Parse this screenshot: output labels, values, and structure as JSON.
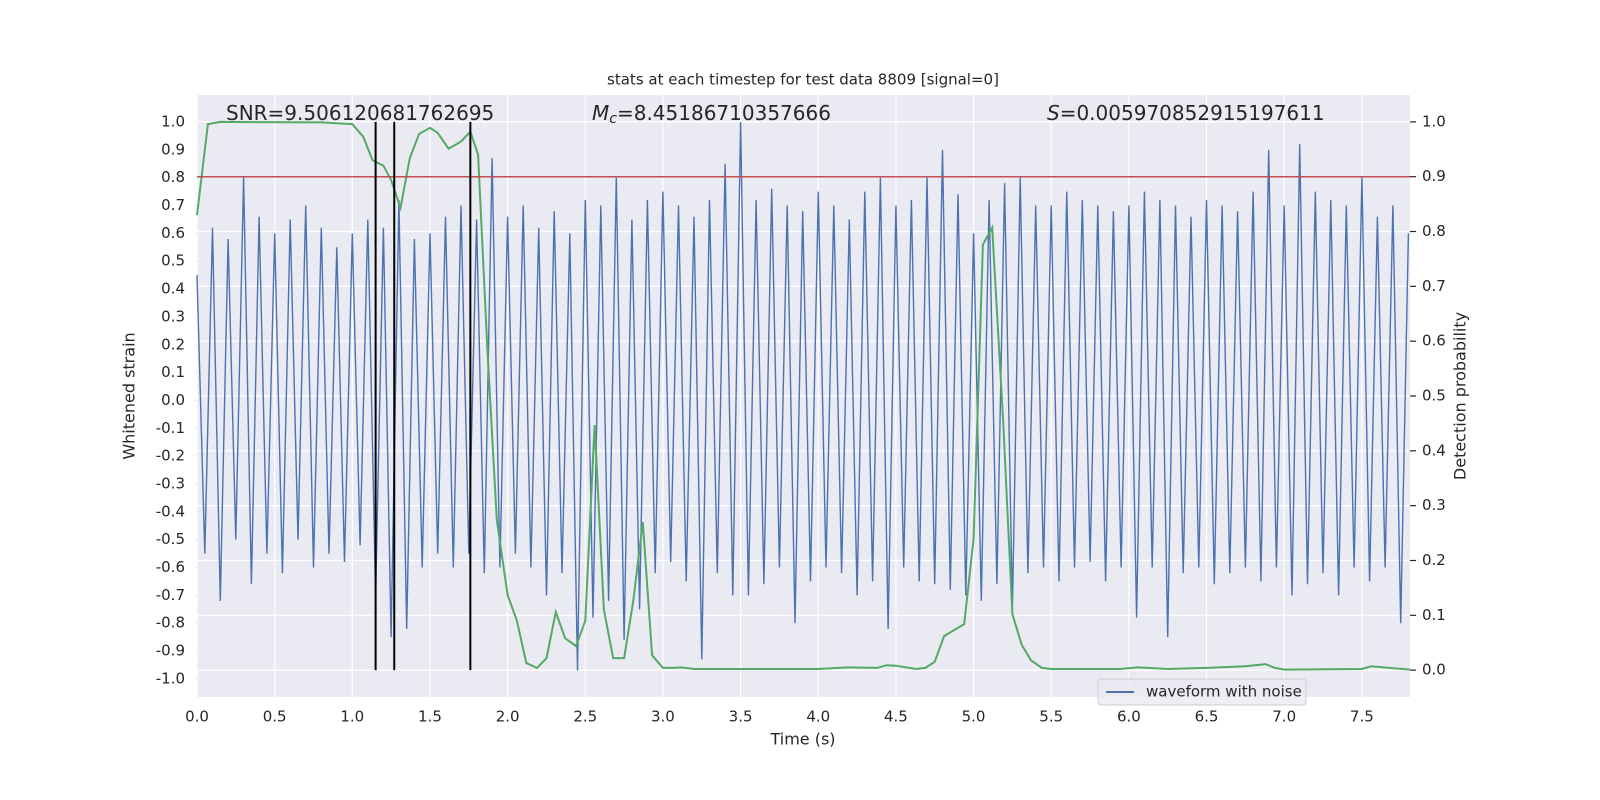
{
  "chart_data": {
    "type": "line",
    "title": "stats at each timestep for test data 8809 [signal=0]",
    "xlabel": "Time (s)",
    "ylabel": "Whitened strain",
    "y2label": "Detection probability",
    "xlim": [
      0,
      7.81
    ],
    "ylim": [
      -1.065,
      1.097
    ],
    "y2lim": [
      -0.049,
      1.049
    ],
    "xticks": [
      {
        "value": 0,
        "label": "0.0"
      },
      0.5,
      {
        "value": 1,
        "label": "1.0"
      },
      1.5,
      {
        "value": 2,
        "label": "2.0"
      },
      2.5,
      {
        "value": 3,
        "label": "3.0"
      },
      3.5,
      {
        "value": 4,
        "label": "4.0"
      },
      4.5,
      {
        "value": 5,
        "label": "5.0"
      },
      5.5,
      {
        "value": 6,
        "label": "6.0"
      },
      6.5,
      {
        "value": 7,
        "label": "7.0"
      },
      7.5
    ],
    "yticks": [
      {
        "value": -1,
        "label": "-1.0"
      },
      -0.9,
      -0.8,
      -0.7,
      -0.6,
      -0.5,
      -0.4,
      -0.3,
      -0.2,
      -0.1,
      {
        "value": 0,
        "label": "0.0"
      },
      0.1,
      0.2,
      0.3,
      0.4,
      0.5,
      0.6,
      0.7,
      0.8,
      0.9,
      {
        "value": 1,
        "label": "1.0"
      }
    ],
    "y2ticks": [
      {
        "value": 0,
        "label": "0.0"
      },
      0.1,
      0.2,
      0.3,
      0.4,
      0.5,
      0.6,
      0.7,
      0.8,
      0.9,
      {
        "value": 1,
        "label": "1.0"
      }
    ],
    "grid": true,
    "legend": "lower right",
    "series": [
      {
        "name": "waveform with noise",
        "color": "#4c72b0",
        "axis": "y",
        "x": [
          0,
          0.05,
          0.1,
          0.15,
          0.2,
          0.25,
          0.3,
          0.35,
          0.4,
          0.45,
          0.5,
          0.55,
          0.6,
          0.65,
          0.7,
          0.75,
          0.8,
          0.85,
          0.9,
          0.95,
          1,
          1.05,
          1.1,
          1.15,
          1.2,
          1.25,
          1.3,
          1.35,
          1.4,
          1.45,
          1.5,
          1.55,
          1.6,
          1.65,
          1.7,
          1.75,
          1.8,
          1.85,
          1.9,
          1.95,
          2,
          2.05,
          2.1,
          2.15,
          2.2,
          2.25,
          2.3,
          2.35,
          2.4,
          2.45,
          2.5,
          2.55,
          2.6,
          2.65,
          2.7,
          2.75,
          2.8,
          2.85,
          2.9,
          2.95,
          3,
          3.05,
          3.1,
          3.15,
          3.2,
          3.25,
          3.3,
          3.35,
          3.4,
          3.45,
          3.5,
          3.55,
          3.6,
          3.65,
          3.7,
          3.75,
          3.8,
          3.85,
          3.9,
          3.95,
          4,
          4.05,
          4.1,
          4.15,
          4.2,
          4.25,
          4.3,
          4.35,
          4.4,
          4.45,
          4.5,
          4.55,
          4.6,
          4.65,
          4.7,
          4.75,
          4.8,
          4.85,
          4.9,
          4.95,
          5,
          5.05,
          5.1,
          5.15,
          5.2,
          5.25,
          5.3,
          5.35,
          5.4,
          5.45,
          5.5,
          5.55,
          5.6,
          5.65,
          5.7,
          5.75,
          5.8,
          5.85,
          5.9,
          5.95,
          6,
          6.05,
          6.1,
          6.15,
          6.2,
          6.25,
          6.3,
          6.35,
          6.4,
          6.45,
          6.5,
          6.55,
          6.6,
          6.65,
          6.7,
          6.75,
          6.8,
          6.85,
          6.9,
          6.95,
          7,
          7.05,
          7.1,
          7.15,
          7.2,
          7.25,
          7.3,
          7.35,
          7.4,
          7.45,
          7.5,
          7.55,
          7.6,
          7.65,
          7.7,
          7.75,
          7.8
        ],
        "values": [
          0.45,
          -0.55,
          0.62,
          -0.72,
          0.58,
          -0.5,
          0.8,
          -0.66,
          0.66,
          -0.55,
          0.6,
          -0.62,
          0.65,
          -0.5,
          0.7,
          -0.6,
          0.62,
          -0.55,
          0.55,
          -0.58,
          0.6,
          -0.52,
          0.65,
          -0.7,
          0.62,
          -0.85,
          0.72,
          -0.82,
          0.58,
          -0.6,
          0.6,
          -0.55,
          0.66,
          -0.6,
          0.7,
          -0.55,
          0.65,
          -0.62,
          0.87,
          -0.6,
          0.66,
          -0.55,
          0.7,
          -0.6,
          0.62,
          -0.7,
          0.68,
          -0.62,
          0.6,
          -0.97,
          0.72,
          -0.78,
          0.7,
          -0.72,
          0.8,
          -0.86,
          0.65,
          -0.75,
          0.72,
          -0.62,
          0.75,
          -0.58,
          0.7,
          -0.65,
          0.66,
          -0.93,
          0.72,
          -0.62,
          0.85,
          -0.7,
          1.0,
          -0.7,
          0.72,
          -0.66,
          0.76,
          -0.6,
          0.7,
          -0.8,
          0.68,
          -0.65,
          0.75,
          -0.6,
          0.7,
          -0.62,
          0.65,
          -0.7,
          0.75,
          -0.65,
          0.8,
          -0.82,
          0.7,
          -0.6,
          0.72,
          -0.65,
          0.8,
          -0.66,
          0.9,
          -0.68,
          0.74,
          -0.7,
          0.6,
          -0.72,
          0.72,
          -0.66,
          0.78,
          -0.75,
          0.8,
          -0.62,
          0.7,
          -0.6,
          0.7,
          -0.65,
          0.75,
          -0.6,
          0.72,
          -0.58,
          0.7,
          -0.65,
          0.68,
          -0.6,
          0.7,
          -0.78,
          0.75,
          -0.6,
          0.72,
          -0.85,
          0.7,
          -0.62,
          0.66,
          -0.6,
          0.72,
          -0.66,
          0.7,
          -0.62,
          0.68,
          -0.6,
          0.75,
          -0.65,
          0.9,
          -0.6,
          0.7,
          -0.7,
          0.92,
          -0.66,
          0.75,
          -0.62,
          0.72,
          -0.7,
          0.7,
          -0.6,
          0.8,
          -0.65,
          0.66,
          -0.6,
          0.7,
          -0.8,
          0.6
        ]
      },
      {
        "color": "#55a868",
        "axis": "y2",
        "x": [
          0,
          0.07,
          0.15,
          0.8,
          1.0,
          1.07,
          1.13,
          1.2,
          1.25,
          1.31,
          1.37,
          1.43,
          1.5,
          1.55,
          1.62,
          1.7,
          1.76,
          1.81,
          1.87,
          1.93,
          2.0,
          2.06,
          2.12,
          2.19,
          2.25,
          2.31,
          2.37,
          2.44,
          2.5,
          2.56,
          2.62,
          2.68,
          2.75,
          2.81,
          2.87,
          2.93,
          3.0,
          3.06,
          3.12,
          3.2,
          3.5,
          3.75,
          4.0,
          4.19,
          4.38,
          4.44,
          4.5,
          4.63,
          4.69,
          4.75,
          4.81,
          4.94,
          5.0,
          5.06,
          5.12,
          5.19,
          5.25,
          5.31,
          5.37,
          5.44,
          5.5,
          5.94,
          6.06,
          6.25,
          6.5,
          6.75,
          6.88,
          6.94,
          7.0,
          7.5,
          7.56,
          7.81
        ],
        "values": [
          0.83,
          0.996,
          1.0,
          0.999,
          0.996,
          0.973,
          0.93,
          0.92,
          0.894,
          0.843,
          0.934,
          0.978,
          0.989,
          0.98,
          0.951,
          0.964,
          0.982,
          0.94,
          0.584,
          0.274,
          0.137,
          0.09,
          0.013,
          0.004,
          0.022,
          0.106,
          0.058,
          0.044,
          0.09,
          0.447,
          0.11,
          0.022,
          0.022,
          0.128,
          0.27,
          0.027,
          0.004,
          0.004,
          0.005,
          0.002,
          0.002,
          0.002,
          0.002,
          0.005,
          0.004,
          0.009,
          0.008,
          0.002,
          0.004,
          0.015,
          0.062,
          0.084,
          0.24,
          0.776,
          0.807,
          0.456,
          0.102,
          0.046,
          0.018,
          0.004,
          0.002,
          0.002,
          0.005,
          0.002,
          0.004,
          0.007,
          0.011,
          0.004,
          0.001,
          0.002,
          0.007,
          0.001
        ]
      }
    ],
    "hlines": [
      {
        "y": 0.9,
        "axis": "y2",
        "color": "#c44e52"
      }
    ],
    "vlines": {
      "x": [
        1.15,
        1.27,
        1.76
      ],
      "ymin": 0,
      "ymax": 1,
      "axis": "y2",
      "color": "#000000"
    },
    "annotations": [
      {
        "text": "SNR=9.506120681762695"
      },
      {
        "symbol": "M",
        "subscript": "c",
        "text": "=8.45186710357666"
      },
      {
        "symbol": "S",
        "text": "=0.005970852915197611"
      }
    ]
  }
}
